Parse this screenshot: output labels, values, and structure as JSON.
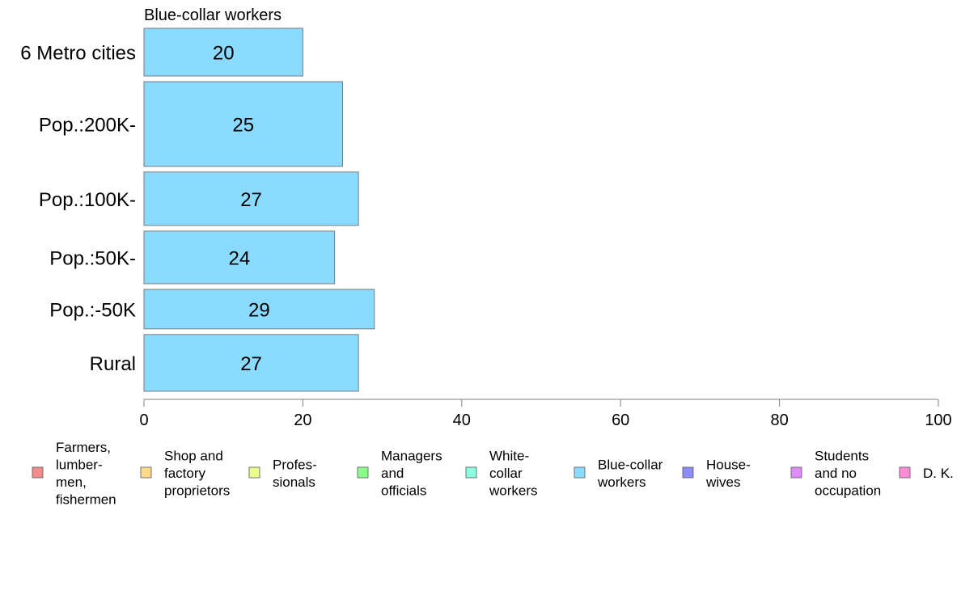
{
  "chart_data": {
    "type": "bar",
    "orientation": "horizontal",
    "title": "Blue-collar workers",
    "categories": [
      "6 Metro cities",
      "Pop.:200K-",
      "Pop.:100K-",
      "Pop.:50K-",
      "Pop.:-50K",
      "Rural"
    ],
    "category_weights": [
      0.58,
      1.03,
      0.65,
      0.64,
      0.48,
      0.69
    ],
    "values": [
      20,
      25,
      27,
      24,
      29,
      27
    ],
    "value_labels": [
      "20",
      "25",
      "27",
      "24",
      "29",
      "27"
    ],
    "bar_color": "#8ADBFF",
    "bar_border_color": "#7A7A7A",
    "axis_color": "#808080",
    "xlim": [
      0,
      100
    ],
    "xticks": [
      0,
      20,
      40,
      60,
      80,
      100
    ],
    "xtick_labels": [
      "0",
      "20",
      "40",
      "60",
      "80",
      "100"
    ],
    "xlabel": "",
    "ylabel": "",
    "grid": false,
    "legend_position": "bottom",
    "legend": [
      {
        "lines": [
          "Farmers,",
          "lumber-",
          "men,",
          "fishermen"
        ],
        "color": "#F28B8B"
      },
      {
        "lines": [
          "Shop and",
          "factory",
          "proprietors"
        ],
        "color": "#FFD98C"
      },
      {
        "lines": [
          "Profes-",
          "sionals"
        ],
        "color": "#E9FF8C"
      },
      {
        "lines": [
          "Managers",
          "and",
          "officials"
        ],
        "color": "#8CFF8C"
      },
      {
        "lines": [
          "White-",
          "collar",
          "workers"
        ],
        "color": "#8CFFE0"
      },
      {
        "lines": [
          "Blue-collar",
          "workers"
        ],
        "color": "#8ADBFF"
      },
      {
        "lines": [
          "House-",
          "wives"
        ],
        "color": "#8C8CFF"
      },
      {
        "lines": [
          "Students",
          "and no",
          "occupation"
        ],
        "color": "#DF8CFF"
      },
      {
        "lines": [
          "D. K."
        ],
        "color": "#FF8CD9"
      }
    ]
  }
}
